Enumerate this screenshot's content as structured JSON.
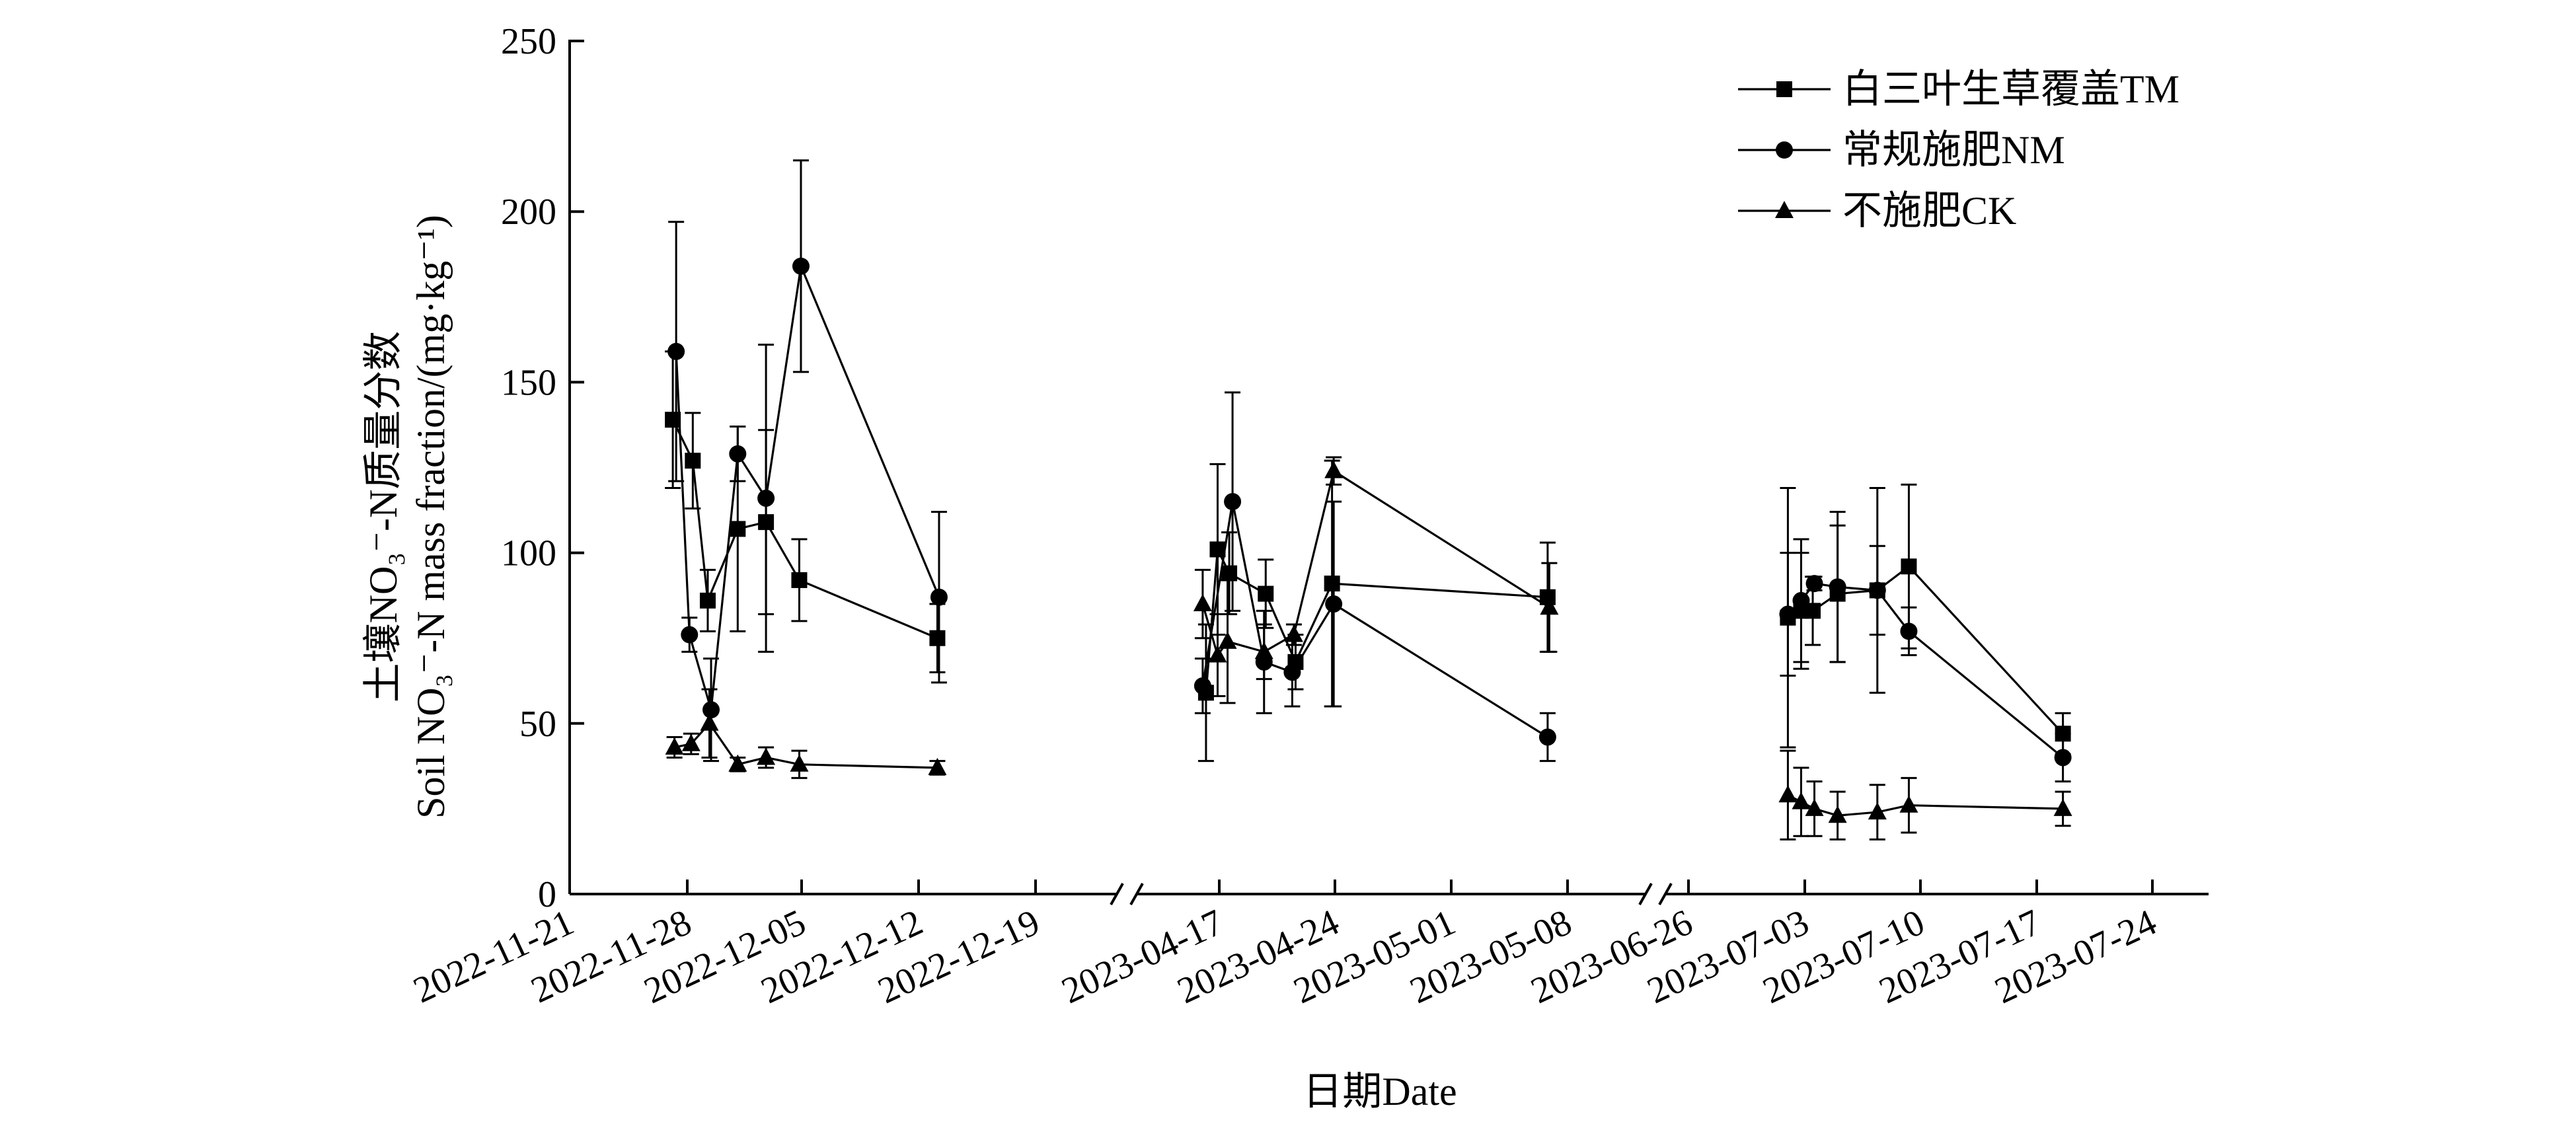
{
  "chart_data": {
    "type": "line",
    "title": "",
    "xlabel": "日期Date",
    "ylabel_cn": "土壤NO₃⁻-N质量分数",
    "ylabel_en": "Soil NO₃⁻-N mass fraction/(mg·kg⁻¹)",
    "ylim": [
      0,
      250
    ],
    "yticks": [
      "0",
      "50",
      "100",
      "150",
      "200",
      "250"
    ],
    "yticks_values": [
      0,
      50,
      100,
      150,
      200,
      250
    ],
    "panels": [
      {
        "start_day": 0,
        "end_day": 35,
        "ticks": [
          {
            "day": 0,
            "label": "2022-11-21"
          },
          {
            "day": 7,
            "label": "2022-11-28"
          },
          {
            "day": 14,
            "label": "2022-12-05"
          },
          {
            "day": 21,
            "label": "2022-12-12"
          },
          {
            "day": 28,
            "label": "2022-12-19"
          }
        ]
      },
      {
        "start_day": 0,
        "end_day": 24,
        "ticks": [
          {
            "day": 4,
            "label": "2023-04-17"
          },
          {
            "day": 11,
            "label": "2023-04-24"
          },
          {
            "day": 18,
            "label": "2023-05-01"
          },
          {
            "day": 25,
            "label": "2023-05-08"
          }
        ]
      },
      {
        "start_day": 0,
        "end_day": 35,
        "ticks": [
          {
            "day": 3,
            "label": "2023-06-26"
          },
          {
            "day": 10,
            "label": "2023-07-03"
          },
          {
            "day": 17,
            "label": "2023-07-10"
          },
          {
            "day": 24,
            "label": "2023-07-17"
          },
          {
            "day": 31,
            "label": "2023-07-24"
          }
        ]
      }
    ],
    "series": [
      {
        "name": "白三叶生草覆盖TM",
        "marker": "square",
        "segments": [
          {
            "panel": 0,
            "points": [
              [
                6.2,
                139,
                20
              ],
              [
                7.4,
                127,
                14
              ],
              [
                8.3,
                86,
                9
              ],
              [
                10.1,
                107,
                30
              ],
              [
                11.8,
                109,
                27
              ],
              [
                13.8,
                92,
                12
              ],
              [
                22.1,
                75,
                10
              ]
            ]
          },
          {
            "panel": 1,
            "points": [
              [
                3.2,
                59,
                20
              ],
              [
                3.9,
                101,
                25
              ],
              [
                4.6,
                94,
                12
              ],
              [
                6.8,
                88,
                10
              ],
              [
                8.6,
                68,
                8
              ],
              [
                10.8,
                91,
                36
              ],
              [
                23.8,
                87,
                16
              ]
            ]
          },
          {
            "panel": 2,
            "points": [
              [
                9.0,
                81,
                38
              ],
              [
                9.8,
                83,
                17
              ],
              [
                10.5,
                83,
                10
              ],
              [
                12.0,
                88,
                20
              ],
              [
                14.4,
                89,
                30
              ],
              [
                16.3,
                96,
                24
              ],
              [
                25.6,
                47,
                6
              ]
            ]
          }
        ]
      },
      {
        "name": "常规施肥NM",
        "marker": "circle",
        "segments": [
          {
            "panel": 0,
            "points": [
              [
                6.4,
                159,
                38
              ],
              [
                7.2,
                76,
                5
              ],
              [
                8.5,
                54,
                15
              ],
              [
                10.1,
                129,
                8
              ],
              [
                11.8,
                116,
                45
              ],
              [
                13.9,
                184,
                31
              ],
              [
                22.2,
                87,
                25
              ]
            ]
          },
          {
            "panel": 1,
            "points": [
              [
                3.0,
                61,
                8
              ],
              [
                4.8,
                115,
                32
              ],
              [
                6.7,
                68,
                15
              ],
              [
                8.4,
                65,
                10
              ],
              [
                10.9,
                85,
                30
              ],
              [
                23.8,
                46,
                7
              ]
            ]
          },
          {
            "panel": 2,
            "points": [
              [
                9.0,
                82,
                18
              ],
              [
                9.8,
                86,
                18
              ],
              [
                10.6,
                91,
                2
              ],
              [
                12.0,
                90,
                22
              ],
              [
                14.4,
                89,
                13
              ],
              [
                16.3,
                77,
                7
              ],
              [
                25.6,
                40,
                7
              ]
            ]
          }
        ]
      },
      {
        "name": "不施肥CK",
        "marker": "triangle",
        "segments": [
          {
            "panel": 0,
            "points": [
              [
                6.3,
                43,
                3
              ],
              [
                7.3,
                44,
                3
              ],
              [
                8.4,
                50,
                10
              ],
              [
                10.1,
                38,
                2
              ],
              [
                11.8,
                40,
                3
              ],
              [
                13.8,
                38,
                4
              ],
              [
                22.1,
                37,
                2
              ]
            ]
          },
          {
            "panel": 1,
            "points": [
              [
                3.0,
                85,
                10
              ],
              [
                3.9,
                70,
                12
              ],
              [
                4.5,
                74,
                18
              ],
              [
                6.7,
                71,
                8
              ],
              [
                8.5,
                76,
                3
              ],
              [
                10.9,
                124,
                4
              ],
              [
                23.9,
                84,
                13
              ]
            ]
          },
          {
            "panel": 2,
            "points": [
              [
                9.0,
                29,
                13
              ],
              [
                9.8,
                27,
                10
              ],
              [
                10.6,
                25,
                8
              ],
              [
                12.0,
                23,
                7
              ],
              [
                14.4,
                24,
                8
              ],
              [
                16.3,
                26,
                8
              ],
              [
                25.6,
                25,
                5
              ]
            ]
          }
        ]
      }
    ],
    "legend": {
      "placement": "top-right",
      "entries": [
        {
          "label": "白三叶生草覆盖TM",
          "marker": "square"
        },
        {
          "label": "常规施肥NM",
          "marker": "circle"
        },
        {
          "label": "不施肥CK",
          "marker": "triangle"
        }
      ]
    }
  }
}
